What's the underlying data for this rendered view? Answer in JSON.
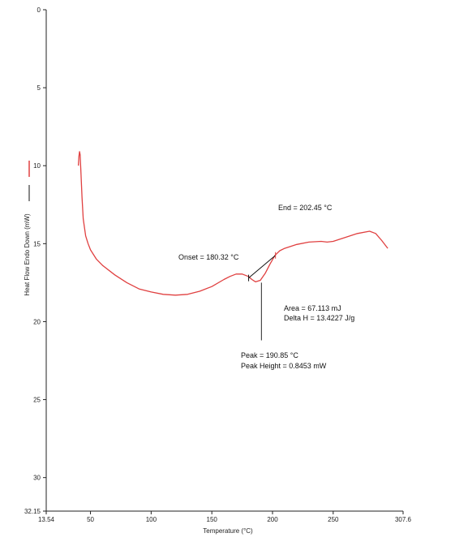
{
  "chart_data": {
    "type": "line",
    "title": "",
    "xlabel": "Temperature (°C)",
    "ylabel": "Heat Flow Endo Down (mW)",
    "xlim": [
      13.54,
      307.6
    ],
    "ylim": [
      0,
      32.15
    ],
    "y_inverted": true,
    "grid": false,
    "x_tick_labels": [
      "13.54",
      "50",
      "100",
      "150",
      "200",
      "250",
      "307.6"
    ],
    "x_ticks": [
      13.54,
      50,
      100,
      150,
      200,
      250,
      307.6
    ],
    "y_tick_labels": [
      "0",
      "5",
      "10",
      "15",
      "20",
      "25",
      "30",
      "32.15"
    ],
    "y_ticks": [
      0,
      5,
      10,
      15,
      20,
      25,
      30,
      32.15
    ],
    "legend_entries": [
      {
        "color": "#e04040"
      },
      {
        "color": "#111111"
      }
    ],
    "series": [
      {
        "color": "#e04040",
        "x": [
          40,
          40.5,
          41,
          41.5,
          42,
          43,
          44,
          46,
          48,
          50,
          55,
          60,
          70,
          80,
          90,
          100,
          110,
          120,
          130,
          140,
          150,
          160,
          165,
          170,
          175,
          180,
          183,
          186,
          190,
          194,
          198,
          202,
          206,
          210,
          220,
          230,
          240,
          245,
          250,
          260,
          270,
          280,
          285,
          290,
          295
        ],
        "y": [
          10.0,
          9.4,
          9.1,
          9.3,
          10.2,
          12.0,
          13.4,
          14.5,
          15.0,
          15.4,
          16.0,
          16.4,
          17.0,
          17.5,
          17.9,
          18.1,
          18.25,
          18.3,
          18.25,
          18.05,
          17.75,
          17.3,
          17.1,
          16.95,
          16.95,
          17.1,
          17.3,
          17.45,
          17.35,
          16.9,
          16.3,
          15.75,
          15.45,
          15.3,
          15.05,
          14.9,
          14.85,
          14.9,
          14.85,
          14.6,
          14.35,
          14.2,
          14.35,
          14.8,
          15.3
        ]
      }
    ],
    "annotations": {
      "onset": "Onset = 180.32 °C",
      "end": "End = 202.45 °C",
      "area": "Area = 67.113 mJ",
      "delta_h": "Delta H = 13.4227 J/g",
      "peak": "Peak = 190.85 °C",
      "peak_height": "Peak Height = 0.8453 mW"
    },
    "baseline": {
      "x1": 180.32,
      "y1": 17.2,
      "x2": 202.45,
      "y2": 15.75
    },
    "peak_marker": {
      "x": 190.85,
      "y_top": 17.5,
      "y_bottom": 21.2
    }
  }
}
